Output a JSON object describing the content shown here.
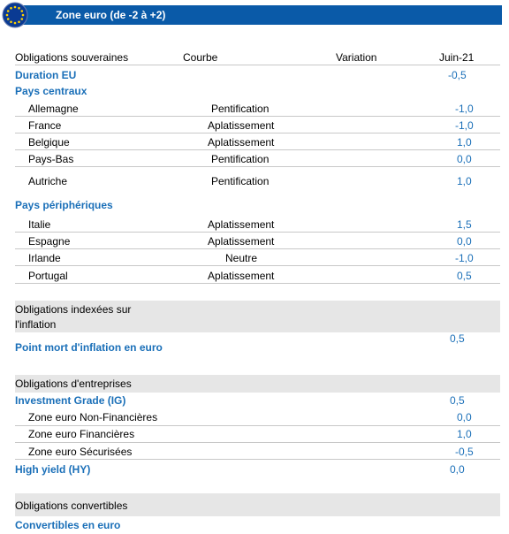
{
  "header": {
    "title": "Zone euro (de -2 à +2)",
    "flag_color": "#0a3a93",
    "bar_color": "#0a5aa8"
  },
  "columns": {
    "category": "Obligations souveraines",
    "curve": "Courbe",
    "variation": "Variation",
    "period": "Juin-21"
  },
  "duration": {
    "label": "Duration EU",
    "value": "-0,5"
  },
  "core": {
    "title": "Pays centraux",
    "rows": [
      {
        "name": "Allemagne",
        "curve": "Pentification",
        "value": "-1,0"
      },
      {
        "name": "France",
        "curve": "Aplatissement",
        "value": "-1,0"
      },
      {
        "name": "Belgique",
        "curve": "Aplatissement",
        "value": "1,0"
      },
      {
        "name": "Pays-Bas",
        "curve": "Pentification",
        "value": "0,0"
      },
      {
        "name": "Autriche",
        "curve": "Pentification",
        "value": "1,0"
      }
    ]
  },
  "periphery": {
    "title": "Pays périphériques",
    "rows": [
      {
        "name": "Italie",
        "curve": "Aplatissement",
        "value": "1,5"
      },
      {
        "name": "Espagne",
        "curve": "Aplatissement",
        "value": "0,0"
      },
      {
        "name": "Irlande",
        "curve": "Neutre",
        "value": "-1,0"
      },
      {
        "name": "Portugal",
        "curve": "Aplatissement",
        "value": "0,5"
      }
    ]
  },
  "inflation": {
    "title_line1": "Obligations indexées sur",
    "title_line2": "l'inflation",
    "label": "Point mort d'inflation  en euro",
    "value": "0,5"
  },
  "corporate": {
    "title": "Obligations d'entreprises",
    "ig_label": "Investment Grade (IG)",
    "ig_value": "0,5",
    "rows": [
      {
        "name": "Zone euro Non-Financières",
        "value": "0,0"
      },
      {
        "name": "Zone euro Financières",
        "value": "1,0"
      },
      {
        "name": "Zone euro Sécurisées",
        "value": "-0,5"
      }
    ],
    "hy_label": "High yield (HY)",
    "hy_value": "0,0"
  },
  "convertibles": {
    "title": "Obligations convertibles",
    "label": "Convertibles en euro"
  }
}
